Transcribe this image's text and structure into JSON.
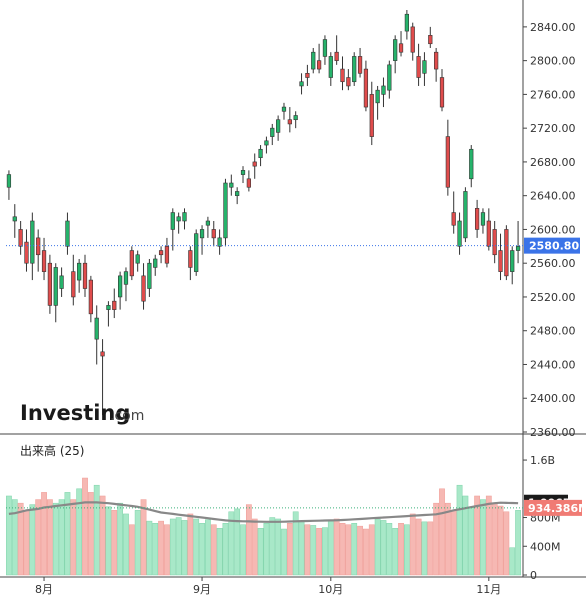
{
  "colors": {
    "up": "#26b36b",
    "down": "#e04c4c",
    "vol_up": "#a8e8c8",
    "vol_down": "#f6b8b3",
    "ma": "#888888",
    "price_tag": "#3a73e8",
    "vol_tag_dark": "#1a1a1a",
    "vol_tag_red": "#f07b74"
  },
  "watermark": {
    "brand": "Investing",
    "suffix": ".com"
  },
  "chart_data": {
    "type": "candlestick",
    "price_axis": {
      "ticks": [
        "2840.00",
        "2800.00",
        "2760.00",
        "2720.00",
        "2680.00",
        "2640.00",
        "2600.00",
        "2560.00",
        "2520.00",
        "2480.00",
        "2440.00",
        "2400.00",
        "2360.00"
      ],
      "range": [
        2360,
        2860
      ]
    },
    "current_price_label": "2580.80",
    "current_price": 2580.8,
    "x_labels": [
      {
        "label": "8月",
        "index": 6
      },
      {
        "label": "9月",
        "index": 33
      },
      {
        "label": "10月",
        "index": 55
      },
      {
        "label": "11月",
        "index": 82
      }
    ],
    "ohlc": [
      [
        2650,
        2670,
        2635,
        2665
      ],
      [
        2610,
        2630,
        2590,
        2615
      ],
      [
        2600,
        2610,
        2570,
        2580
      ],
      [
        2585,
        2600,
        2550,
        2560
      ],
      [
        2560,
        2620,
        2540,
        2610
      ],
      [
        2590,
        2600,
        2550,
        2570
      ],
      [
        2575,
        2590,
        2540,
        2550
      ],
      [
        2560,
        2570,
        2500,
        2510
      ],
      [
        2510,
        2560,
        2490,
        2555
      ],
      [
        2530,
        2555,
        2520,
        2545
      ],
      [
        2580,
        2620,
        2570,
        2610
      ],
      [
        2550,
        2570,
        2510,
        2520
      ],
      [
        2540,
        2565,
        2525,
        2560
      ],
      [
        2560,
        2570,
        2520,
        2530
      ],
      [
        2540,
        2545,
        2490,
        2500
      ],
      [
        2470,
        2510,
        2440,
        2495
      ],
      [
        2455,
        2470,
        2380,
        2450
      ],
      [
        2505,
        2515,
        2485,
        2510
      ],
      [
        2515,
        2530,
        2495,
        2505
      ],
      [
        2520,
        2550,
        2505,
        2545
      ],
      [
        2535,
        2555,
        2515,
        2550
      ],
      [
        2575,
        2580,
        2540,
        2545
      ],
      [
        2560,
        2575,
        2550,
        2570
      ],
      [
        2545,
        2560,
        2505,
        2515
      ],
      [
        2530,
        2565,
        2520,
        2560
      ],
      [
        2555,
        2570,
        2545,
        2565
      ],
      [
        2575,
        2580,
        2560,
        2570
      ],
      [
        2580,
        2590,
        2555,
        2560
      ],
      [
        2600,
        2625,
        2575,
        2620
      ],
      [
        2610,
        2620,
        2595,
        2615
      ],
      [
        2610,
        2625,
        2600,
        2620
      ],
      [
        2575,
        2580,
        2540,
        2555
      ],
      [
        2550,
        2600,
        2545,
        2595
      ],
      [
        2590,
        2605,
        2570,
        2600
      ],
      [
        2605,
        2615,
        2590,
        2610
      ],
      [
        2600,
        2610,
        2580,
        2590
      ],
      [
        2580,
        2600,
        2570,
        2590
      ],
      [
        2590,
        2660,
        2580,
        2655
      ],
      [
        2650,
        2665,
        2640,
        2655
      ],
      [
        2640,
        2650,
        2630,
        2645
      ],
      [
        2665,
        2675,
        2655,
        2670
      ],
      [
        2660,
        2670,
        2645,
        2650
      ],
      [
        2680,
        2690,
        2660,
        2675
      ],
      [
        2685,
        2700,
        2675,
        2695
      ],
      [
        2700,
        2710,
        2690,
        2705
      ],
      [
        2710,
        2725,
        2700,
        2720
      ],
      [
        2715,
        2735,
        2705,
        2730
      ],
      [
        2740,
        2750,
        2730,
        2745
      ],
      [
        2730,
        2745,
        2715,
        2725
      ],
      [
        2730,
        2740,
        2720,
        2735
      ],
      [
        2770,
        2785,
        2760,
        2775
      ],
      [
        2785,
        2795,
        2770,
        2780
      ],
      [
        2790,
        2815,
        2785,
        2810
      ],
      [
        2800,
        2820,
        2785,
        2790
      ],
      [
        2805,
        2830,
        2795,
        2825
      ],
      [
        2780,
        2810,
        2770,
        2805
      ],
      [
        2810,
        2830,
        2795,
        2800
      ],
      [
        2790,
        2805,
        2765,
        2775
      ],
      [
        2780,
        2790,
        2765,
        2770
      ],
      [
        2775,
        2810,
        2770,
        2805
      ],
      [
        2805,
        2815,
        2780,
        2785
      ],
      [
        2790,
        2800,
        2740,
        2745
      ],
      [
        2760,
        2775,
        2700,
        2710
      ],
      [
        2750,
        2770,
        2730,
        2765
      ],
      [
        2760,
        2780,
        2745,
        2770
      ],
      [
        2765,
        2800,
        2755,
        2795
      ],
      [
        2800,
        2830,
        2785,
        2825
      ],
      [
        2820,
        2835,
        2805,
        2810
      ],
      [
        2835,
        2860,
        2825,
        2855
      ],
      [
        2840,
        2845,
        2800,
        2810
      ],
      [
        2805,
        2820,
        2770,
        2780
      ],
      [
        2785,
        2810,
        2770,
        2800
      ],
      [
        2830,
        2840,
        2815,
        2820
      ],
      [
        2810,
        2815,
        2775,
        2790
      ],
      [
        2780,
        2790,
        2740,
        2745
      ],
      [
        2710,
        2730,
        2640,
        2650
      ],
      [
        2620,
        2645,
        2595,
        2605
      ],
      [
        2580,
        2620,
        2570,
        2610
      ],
      [
        2590,
        2650,
        2585,
        2645
      ],
      [
        2660,
        2700,
        2650,
        2695
      ],
      [
        2625,
        2635,
        2590,
        2600
      ],
      [
        2605,
        2625,
        2595,
        2620
      ],
      [
        2610,
        2625,
        2575,
        2580
      ],
      [
        2600,
        2610,
        2560,
        2570
      ],
      [
        2575,
        2595,
        2540,
        2550
      ],
      [
        2600,
        2605,
        2540,
        2545
      ],
      [
        2550,
        2580,
        2535,
        2575
      ],
      [
        2575,
        2610,
        2560,
        2580
      ]
    ],
    "volume": {
      "label": "出来高 (25)",
      "ticks": [
        "1.6B",
        "800M",
        "400M",
        "0"
      ],
      "tick_values": [
        1600,
        800,
        400,
        0
      ],
      "range_m": [
        0,
        1740
      ],
      "tags": [
        {
          "text": "1.006B",
          "value": 1006
        },
        {
          "text": "934.386M",
          "value": 934.386
        }
      ],
      "values": [
        1100,
        1050,
        1000,
        900,
        980,
        1050,
        1150,
        1050,
        1000,
        1050,
        1150,
        1050,
        1200,
        1350,
        1150,
        1250,
        1100,
        950,
        900,
        1000,
        850,
        700,
        900,
        1050,
        750,
        720,
        750,
        700,
        780,
        800,
        760,
        850,
        780,
        720,
        770,
        700,
        650,
        720,
        880,
        920,
        700,
        980,
        780,
        650,
        720,
        800,
        780,
        640,
        720,
        880,
        740,
        700,
        690,
        650,
        660,
        750,
        780,
        720,
        700,
        720,
        680,
        640,
        700,
        780,
        760,
        720,
        650,
        720,
        700,
        850,
        780,
        740,
        740,
        1000,
        1200,
        1000,
        900,
        1250,
        1100,
        950,
        1100,
        1050,
        1100,
        1000,
        960,
        880,
        380,
        900
      ],
      "ma": [
        850,
        860,
        880,
        900,
        910,
        920,
        940,
        950,
        960,
        970,
        980,
        990,
        1000,
        1010,
        1010,
        1010,
        1005,
        1000,
        990,
        980,
        970,
        960,
        950,
        930,
        910,
        890,
        870,
        860,
        850,
        840,
        830,
        820,
        810,
        800,
        790,
        780,
        770,
        760,
        755,
        750,
        748,
        746,
        744,
        742,
        740,
        740,
        740,
        742,
        745,
        748,
        750,
        752,
        754,
        756,
        758,
        760,
        762,
        765,
        770,
        775,
        780,
        785,
        790,
        795,
        800,
        805,
        810,
        815,
        820,
        825,
        830,
        835,
        840,
        845,
        860,
        880,
        900,
        915,
        930,
        945,
        960,
        975,
        990,
        1000,
        1006,
        1004,
        1002,
        1000
      ]
    }
  }
}
